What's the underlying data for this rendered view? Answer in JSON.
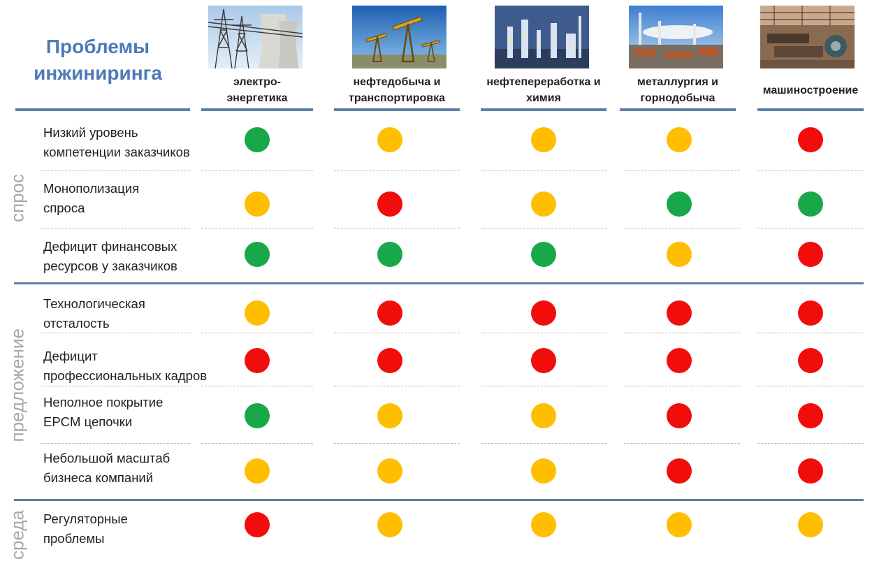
{
  "title": {
    "line1": "Проблемы",
    "line2": "инжиниринга"
  },
  "colors": {
    "green": "#18a84a",
    "yellow": "#ffbe00",
    "red": "#f20d0d",
    "accent": "#4f7ab8",
    "bar": "#5e7fa8",
    "group_label": "#a8a8a8"
  },
  "columns": [
    {
      "line1": "электро-",
      "line2": "энергетика",
      "image": "power-plant-image"
    },
    {
      "line1": "нефтедобыча и",
      "line2": "транспортировка",
      "image": "oil-pumps-image"
    },
    {
      "line1": "нефтепереработка и",
      "line2": "химия",
      "image": "refinery-image"
    },
    {
      "line1": "металлургия и",
      "line2": "горнодобыча",
      "image": "metallurgy-plant-image"
    },
    {
      "line1": "машиностроение",
      "line2": "",
      "image": "machine-shop-image"
    }
  ],
  "groups": [
    {
      "label": "спрос"
    },
    {
      "label": "предложение"
    },
    {
      "label": "среда"
    }
  ],
  "rows": [
    {
      "line1": "Низкий уровень",
      "line2": "компетенции заказчиков",
      "status": [
        "green",
        "yellow",
        "yellow",
        "yellow",
        "red"
      ]
    },
    {
      "line1": "Монополизация",
      "line2": "спроса",
      "status": [
        "yellow",
        "red",
        "yellow",
        "green",
        "green"
      ]
    },
    {
      "line1": "Дефицит финансовых",
      "line2": "ресурсов у заказчиков",
      "status": [
        "green",
        "green",
        "green",
        "yellow",
        "red"
      ]
    },
    {
      "line1": "Технологическая",
      "line2": "отсталость",
      "status": [
        "yellow",
        "red",
        "red",
        "red",
        "red"
      ]
    },
    {
      "line1": "Дефицит",
      "line2": "профессиональных кадров",
      "status": [
        "red",
        "red",
        "red",
        "red",
        "red"
      ]
    },
    {
      "line1": "Неполное покрытие",
      "line2": "EPCM цепочки",
      "status": [
        "green",
        "yellow",
        "yellow",
        "red",
        "red"
      ]
    },
    {
      "line1": "Небольшой масштаб",
      "line2": "бизнеса компаний",
      "status": [
        "yellow",
        "yellow",
        "yellow",
        "red",
        "red"
      ]
    },
    {
      "line1": "Регуляторные",
      "line2": "проблемы",
      "status": [
        "red",
        "yellow",
        "yellow",
        "yellow",
        "yellow"
      ]
    }
  ]
}
